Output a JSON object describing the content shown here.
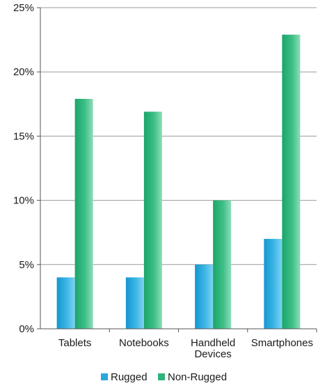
{
  "chart_data": {
    "type": "bar",
    "categories": [
      [
        "Tablets"
      ],
      [
        "Notebooks"
      ],
      [
        "Handheld",
        "Devices"
      ],
      [
        "Smartphones"
      ]
    ],
    "series": [
      {
        "name": "Rugged",
        "values": [
          4,
          4,
          5,
          7
        ],
        "color": "#29a8de"
      },
      {
        "name": "Non-Rugged",
        "values": [
          17.9,
          16.9,
          10,
          22.9
        ],
        "color": "#2fb37a"
      }
    ],
    "yticks": [
      "0%",
      "5%",
      "10%",
      "15%",
      "20%",
      "25%"
    ],
    "ylim": [
      0,
      25
    ],
    "grid": true,
    "legend_position": "bottom-center"
  }
}
